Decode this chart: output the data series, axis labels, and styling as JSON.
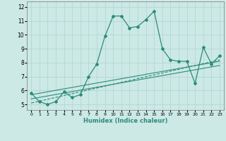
{
  "xlabel": "Humidex (Indice chaleur)",
  "line_color": "#2d8b7a",
  "bg_color": "#cce9e5",
  "grid_color": "#aed4cf",
  "xlim": [
    -0.5,
    23.5
  ],
  "ylim": [
    4.6,
    12.4
  ],
  "xticks": [
    0,
    1,
    2,
    3,
    4,
    5,
    6,
    7,
    8,
    9,
    10,
    11,
    12,
    13,
    14,
    15,
    16,
    17,
    18,
    19,
    20,
    21,
    22,
    23
  ],
  "yticks": [
    5,
    6,
    7,
    8,
    9,
    10,
    11,
    12
  ],
  "series1_x": [
    0,
    1,
    2,
    3,
    4,
    5,
    6,
    7,
    8,
    9,
    10,
    11,
    12,
    13,
    14,
    15,
    16,
    17,
    18,
    19,
    20,
    21,
    22,
    23
  ],
  "series1_y": [
    5.8,
    5.2,
    5.0,
    5.2,
    5.9,
    5.5,
    5.7,
    7.0,
    7.9,
    9.9,
    11.35,
    11.35,
    10.5,
    10.6,
    11.1,
    11.7,
    9.0,
    8.2,
    8.1,
    8.1,
    6.5,
    9.1,
    7.9,
    8.5
  ],
  "series2_x": [
    0,
    23
  ],
  "series2_y": [
    5.7,
    8.1
  ],
  "series3_x": [
    0,
    23
  ],
  "series3_y": [
    5.4,
    7.8
  ],
  "series4_x": [
    0,
    23
  ],
  "series4_y": [
    5.1,
    8.2
  ]
}
